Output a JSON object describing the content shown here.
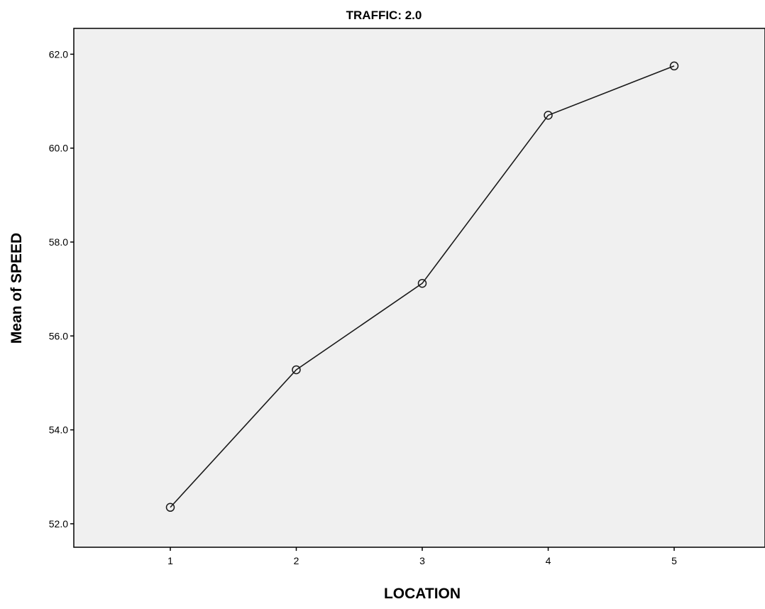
{
  "chart_data": {
    "type": "line",
    "title": "TRAFFIC: 2.0",
    "xlabel": "LOCATION",
    "ylabel": "Mean of SPEED",
    "categories": [
      "1",
      "2",
      "3",
      "4",
      "5"
    ],
    "series": [
      {
        "values": [
          52.35,
          55.28,
          57.12,
          60.7,
          61.75
        ],
        "marker": "open-circle"
      }
    ],
    "yticks": [
      "52.0",
      "54.0",
      "56.0",
      "58.0",
      "60.0",
      "62.0"
    ],
    "ylim": [
      51.5,
      62.55
    ],
    "grid": false,
    "legend": "none",
    "colors": {
      "plot_background": "#f0f0f0",
      "line": "#1a1a1a",
      "axis": "#000000"
    }
  }
}
